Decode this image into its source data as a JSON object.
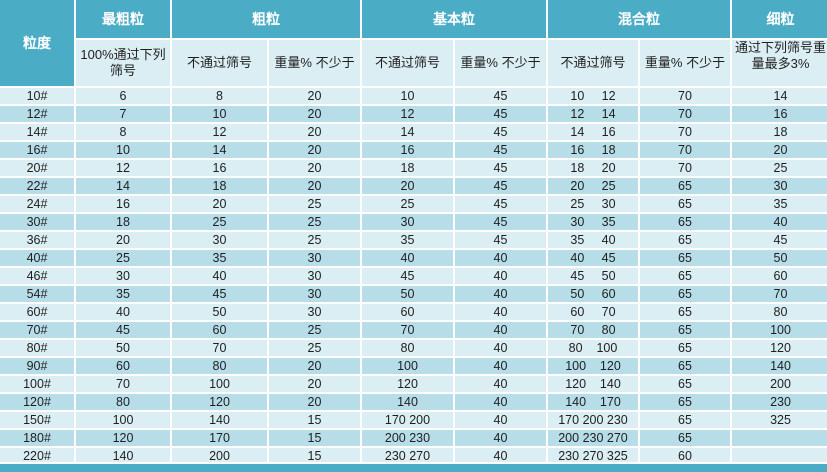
{
  "colors": {
    "header-teal": "#4BACC6",
    "row-light": "#DBEEF3",
    "row-band": "#B7DDE8",
    "grid-white": "#FFFFFF",
    "text-dark": "#1F1F1F"
  },
  "chart_data": {
    "type": "table",
    "corner_header": "粒度",
    "column_groups": [
      {
        "label": "最粗粒",
        "colspan": 1
      },
      {
        "label": "粗粒",
        "colspan": 2
      },
      {
        "label": "基本粒",
        "colspan": 2
      },
      {
        "label": "混合粒",
        "colspan": 2
      },
      {
        "label": "细粒",
        "colspan": 1
      }
    ],
    "sub_headers": [
      "100%通过下列筛号",
      "不通过筛号",
      "重量% 不少于",
      "不通过筛号",
      "重量% 不少于",
      "不通过筛号",
      "重量% 不少于",
      "通过下列筛号重量最多3%"
    ],
    "rows": [
      [
        "10#",
        "6",
        "8",
        "20",
        "10",
        "45",
        "10     12",
        "70",
        "14"
      ],
      [
        "12#",
        "7",
        "10",
        "20",
        "12",
        "45",
        "12     14",
        "70",
        "16"
      ],
      [
        "14#",
        "8",
        "12",
        "20",
        "14",
        "45",
        "14     16",
        "70",
        "18"
      ],
      [
        "16#",
        "10",
        "14",
        "20",
        "16",
        "45",
        "16     18",
        "70",
        "20"
      ],
      [
        "20#",
        "12",
        "16",
        "20",
        "18",
        "45",
        "18     20",
        "70",
        "25"
      ],
      [
        "22#",
        "14",
        "18",
        "20",
        "20",
        "45",
        "20     25",
        "65",
        "30"
      ],
      [
        "24#",
        "16",
        "20",
        "25",
        "25",
        "45",
        "25     30",
        "65",
        "35"
      ],
      [
        "30#",
        "18",
        "25",
        "25",
        "30",
        "45",
        "30     35",
        "65",
        "40"
      ],
      [
        "36#",
        "20",
        "30",
        "25",
        "35",
        "45",
        "35     40",
        "65",
        "45"
      ],
      [
        "40#",
        "25",
        "35",
        "30",
        "40",
        "40",
        "40     45",
        "65",
        "50"
      ],
      [
        "46#",
        "30",
        "40",
        "30",
        "45",
        "40",
        "45     50",
        "65",
        "60"
      ],
      [
        "54#",
        "35",
        "45",
        "30",
        "50",
        "40",
        "50     60",
        "65",
        "70"
      ],
      [
        "60#",
        "40",
        "50",
        "30",
        "60",
        "40",
        "60     70",
        "65",
        "80"
      ],
      [
        "70#",
        "45",
        "60",
        "25",
        "70",
        "40",
        "70     80",
        "65",
        "100"
      ],
      [
        "80#",
        "50",
        "70",
        "25",
        "80",
        "40",
        "80    100",
        "65",
        "120"
      ],
      [
        "90#",
        "60",
        "80",
        "20",
        "100",
        "40",
        "100    120",
        "65",
        "140"
      ],
      [
        "100#",
        "70",
        "100",
        "20",
        "120",
        "40",
        "120    140",
        "65",
        "200"
      ],
      [
        "120#",
        "80",
        "120",
        "20",
        "140",
        "40",
        "140    170",
        "65",
        "230"
      ],
      [
        "150#",
        "100",
        "140",
        "15",
        "170 200",
        "40",
        "170 200 230",
        "65",
        "325"
      ],
      [
        "180#",
        "120",
        "170",
        "15",
        "200 230",
        "40",
        "200 230 270",
        "65",
        ""
      ],
      [
        "220#",
        "140",
        "200",
        "15",
        "230 270",
        "40",
        "230 270 325",
        "60",
        ""
      ]
    ]
  }
}
